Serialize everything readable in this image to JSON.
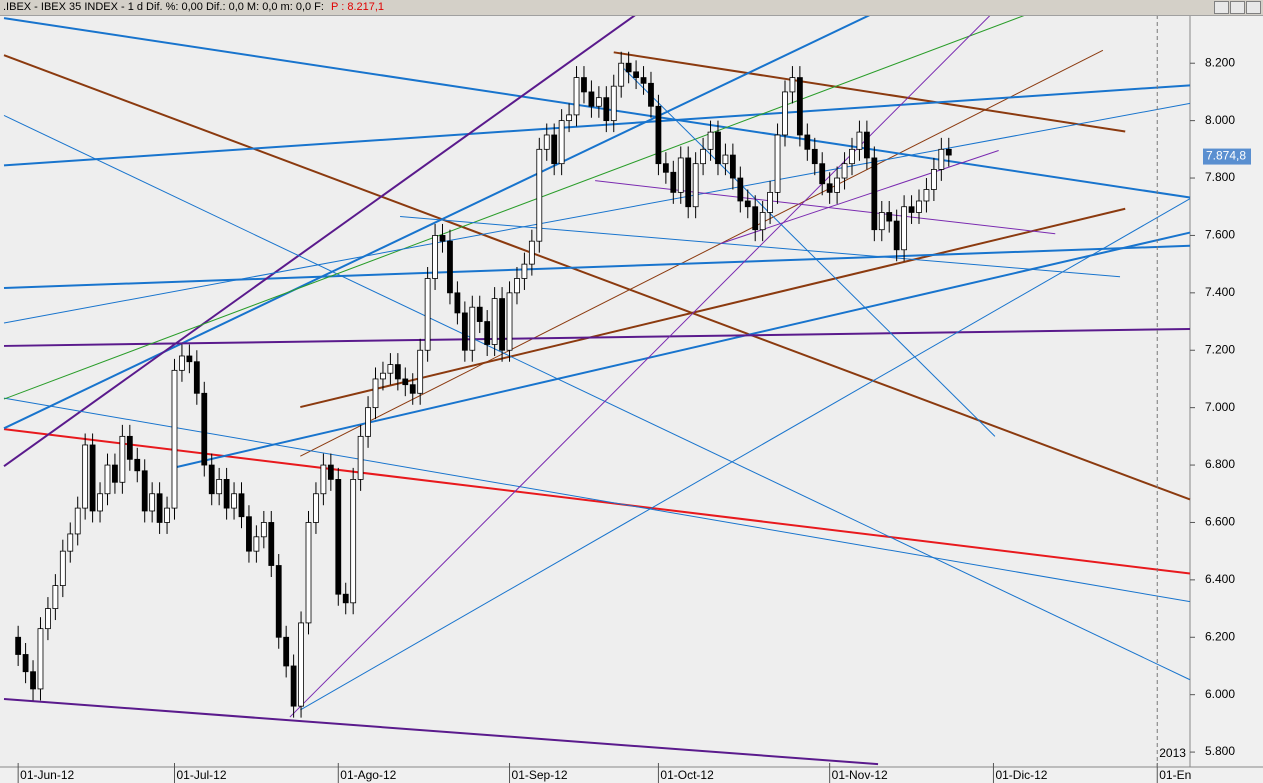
{
  "chart_data": {
    "type": "candlestick",
    "title": ".IBEX - IBEX 35 INDEX - 1 d Dif. %: 0,00  Dif.: 0,0  M: 0,0  m: 0,0  F:",
    "price_label": "P : 8.217,1",
    "year_marker": "2013",
    "last_value": {
      "value": 7874.8,
      "label": "7.874,8"
    },
    "up_color": "#ffffff",
    "down_color": "#000000",
    "open": [
      6200,
      6140,
      6080,
      6020,
      6230,
      6300,
      6380,
      6500,
      6560,
      6650,
      6870,
      6640,
      6700,
      6800,
      6740,
      6900,
      6820,
      6780,
      6640,
      6700,
      6600,
      6650,
      7130,
      7180,
      7160,
      7050,
      6800,
      6700,
      6750,
      6650,
      6700,
      6620,
      6500,
      6550,
      6600,
      6450,
      6200,
      6100,
      5960,
      6250,
      6600,
      6700,
      6800,
      6750,
      6350,
      6320,
      6750,
      6900,
      7000,
      7100,
      7120,
      7150,
      7100,
      7080,
      7050,
      7200,
      7450,
      7600,
      7580,
      7400,
      7330,
      7200,
      7350,
      7300,
      7220,
      7380,
      7200,
      7400,
      7450,
      7500,
      7580,
      7900,
      7950,
      7850,
      8000,
      8020,
      8150,
      8100,
      8050,
      8080,
      8000,
      8120,
      8200,
      8170,
      8150,
      8130,
      8050,
      7850,
      7820,
      7750,
      7870,
      7700,
      7850,
      7900,
      7960,
      7850,
      7880,
      7800,
      7720,
      7700,
      7620,
      7680,
      7750,
      7950,
      8100,
      8150,
      7950,
      7900,
      7850,
      7780,
      7750,
      7800,
      7850,
      7900,
      7960,
      7870,
      7620,
      7680,
      7650,
      7550,
      7700,
      7680,
      7720,
      7760,
      7830,
      7900
    ],
    "high": [
      6240,
      6180,
      6120,
      6270,
      6340,
      6420,
      6540,
      6600,
      6690,
      6910,
      6910,
      6740,
      6840,
      6840,
      6940,
      6940,
      6860,
      6820,
      6740,
      6740,
      6690,
      7170,
      7220,
      7220,
      7200,
      7090,
      6840,
      6790,
      6790,
      6740,
      6740,
      6660,
      6590,
      6640,
      6640,
      6490,
      6240,
      6140,
      6290,
      6640,
      6740,
      6840,
      6840,
      6790,
      6390,
      6790,
      6940,
      7040,
      7140,
      7160,
      7190,
      7190,
      7140,
      7120,
      7240,
      7490,
      7640,
      7640,
      7620,
      7440,
      7370,
      7390,
      7390,
      7340,
      7420,
      7420,
      7440,
      7490,
      7540,
      7620,
      7940,
      7990,
      7990,
      8040,
      8060,
      8190,
      8190,
      8140,
      8120,
      8120,
      8160,
      8240,
      8240,
      8210,
      8190,
      8170,
      8090,
      7890,
      7860,
      7910,
      7910,
      7890,
      7940,
      8000,
      8000,
      7920,
      7920,
      7840,
      7760,
      7740,
      7720,
      7790,
      7990,
      8140,
      8190,
      8190,
      7990,
      7940,
      7890,
      7820,
      7840,
      7890,
      7940,
      8000,
      8000,
      7910,
      7720,
      7720,
      7690,
      7740,
      7740,
      7760,
      7800,
      7870,
      7940,
      7940
    ],
    "low": [
      6100,
      6040,
      5980,
      5980,
      6190,
      6260,
      6340,
      6460,
      6520,
      6610,
      6600,
      6600,
      6660,
      6700,
      6700,
      6780,
      6740,
      6600,
      6600,
      6560,
      6560,
      6610,
      7090,
      7120,
      7010,
      6760,
      6660,
      6660,
      6610,
      6610,
      6580,
      6460,
      6460,
      6510,
      6410,
      6160,
      6060,
      5920,
      5920,
      6210,
      6560,
      6660,
      6710,
      6310,
      6280,
      6280,
      6710,
      6860,
      6960,
      7060,
      7080,
      7060,
      7040,
      7010,
      7010,
      7160,
      7410,
      7540,
      7360,
      7290,
      7160,
      7160,
      7260,
      7180,
      7180,
      7160,
      7160,
      7360,
      7410,
      7460,
      7540,
      7860,
      7810,
      7810,
      7960,
      7980,
      8060,
      8010,
      8010,
      7960,
      7960,
      8080,
      8130,
      8110,
      8090,
      8010,
      7810,
      7780,
      7710,
      7710,
      7660,
      7660,
      7810,
      7860,
      7810,
      7810,
      7760,
      7680,
      7660,
      7580,
      7580,
      7640,
      7710,
      7910,
      8060,
      7910,
      7860,
      7810,
      7740,
      7710,
      7710,
      7760,
      7810,
      7860,
      7830,
      7580,
      7580,
      7610,
      7510,
      7510,
      7640,
      7640,
      7680,
      7720,
      7790,
      7840
    ],
    "close": [
      6140,
      6080,
      6020,
      6230,
      6300,
      6380,
      6500,
      6560,
      6650,
      6870,
      6640,
      6700,
      6800,
      6740,
      6900,
      6820,
      6780,
      6640,
      6700,
      6600,
      6650,
      7130,
      7180,
      7160,
      7050,
      6800,
      6700,
      6750,
      6650,
      6700,
      6620,
      6500,
      6550,
      6600,
      6450,
      6200,
      6100,
      5960,
      6250,
      6600,
      6700,
      6800,
      6750,
      6350,
      6320,
      6750,
      6900,
      7000,
      7100,
      7120,
      7150,
      7100,
      7080,
      7050,
      7200,
      7450,
      7600,
      7580,
      7400,
      7330,
      7200,
      7350,
      7300,
      7220,
      7380,
      7200,
      7400,
      7450,
      7500,
      7580,
      7900,
      7950,
      7850,
      8000,
      8020,
      8150,
      8100,
      8050,
      8080,
      8000,
      8120,
      8200,
      8170,
      8150,
      8130,
      8050,
      7850,
      7820,
      7750,
      7870,
      7700,
      7850,
      7900,
      7960,
      7850,
      7880,
      7800,
      7720,
      7700,
      7620,
      7680,
      7750,
      7950,
      8100,
      8150,
      7950,
      7900,
      7850,
      7780,
      7750,
      7800,
      7850,
      7900,
      7960,
      7870,
      7620,
      7680,
      7650,
      7550,
      7700,
      7680,
      7720,
      7760,
      7830,
      7900,
      7880
    ],
    "xlim": [
      -1.9,
      157.4
    ],
    "xticks": [
      {
        "value": 0,
        "label": "01-Jun-12"
      },
      {
        "value": 21,
        "label": "01-Jul-12"
      },
      {
        "value": 43,
        "label": "01-Ago-12"
      },
      {
        "value": 66,
        "label": "01-Sep-12"
      },
      {
        "value": 86,
        "label": "01-Oct-12"
      },
      {
        "value": 109,
        "label": "01-Nov-12"
      },
      {
        "value": 131,
        "label": "01-Dic-12"
      },
      {
        "value": 153,
        "label": "01-En"
      }
    ],
    "ylim": [
      5748,
      8368
    ],
    "yticks": [
      {
        "value": 5800,
        "label": "5.800"
      },
      {
        "value": 6000,
        "label": "6.000"
      },
      {
        "value": 6200,
        "label": "6.200"
      },
      {
        "value": 6400,
        "label": "6.400"
      },
      {
        "value": 6600,
        "label": "6.600"
      },
      {
        "value": 6800,
        "label": "6.800"
      },
      {
        "value": 7000,
        "label": "7.000"
      },
      {
        "value": 7200,
        "label": "7.200"
      },
      {
        "value": 7400,
        "label": "7.400"
      },
      {
        "value": 7600,
        "label": "7.600"
      },
      {
        "value": 7800,
        "label": "7.800"
      },
      {
        "value": 8000,
        "label": "8.000"
      },
      {
        "value": 8200,
        "label": "8.200"
      }
    ],
    "trendlines": [
      {
        "color": "#e8191d",
        "width": 2,
        "x": [
          -1.9,
          157.4
        ],
        "y": [
          6925,
          6422
        ]
      },
      {
        "color": "#8b3a0f",
        "width": 2,
        "x": [
          -1.9,
          157.4
        ],
        "y": [
          8228,
          6680
        ]
      },
      {
        "color": "#8b3a0f",
        "width": 2,
        "x": [
          80.0,
          148.7
        ],
        "y": [
          8238,
          7962
        ]
      },
      {
        "color": "#8b3a0f",
        "width": 2,
        "x": [
          37.9,
          148.7
        ],
        "y": [
          7002,
          7693
        ]
      },
      {
        "color": "#8b3a0f",
        "width": 1,
        "x": [
          37.9,
          145.7
        ],
        "y": [
          6831,
          8245
        ]
      },
      {
        "color": "#1874cd",
        "width": 2,
        "x": [
          -1.9,
          157.4
        ],
        "y": [
          7844,
          8123
        ]
      },
      {
        "color": "#1874cd",
        "width": 2,
        "x": [
          -1.9,
          157.4
        ],
        "y": [
          8357,
          7732
        ]
      },
      {
        "color": "#1874cd",
        "width": 2,
        "x": [
          -1.9,
          114.4
        ],
        "y": [
          6928,
          8368
        ]
      },
      {
        "color": "#1874cd",
        "width": 2,
        "x": [
          21.1,
          157.4
        ],
        "y": [
          6792,
          7610
        ]
      },
      {
        "color": "#1874cd",
        "width": 2,
        "x": [
          -1.9,
          157.4
        ],
        "y": [
          7417,
          7564
        ]
      },
      {
        "color": "#5a1a8c",
        "width": 2,
        "x": [
          -1.9,
          82.9
        ],
        "y": [
          6796,
          8368
        ]
      },
      {
        "color": "#5a1a8c",
        "width": 2,
        "x": [
          -1.9,
          157.4
        ],
        "y": [
          7215,
          7274
        ]
      },
      {
        "color": "#5a1a8c",
        "width": 2,
        "x": [
          -1.9,
          115.5
        ],
        "y": [
          5985,
          5758
        ]
      },
      {
        "color": "#1874cd",
        "width": 1,
        "x": [
          -1.9,
          157.4
        ],
        "y": [
          8018,
          6052
        ]
      },
      {
        "color": "#1874cd",
        "width": 1,
        "x": [
          -1.9,
          157.4
        ],
        "y": [
          7033,
          6324
        ]
      },
      {
        "color": "#1874cd",
        "width": 1,
        "x": [
          37.9,
          157.4
        ],
        "y": [
          5947,
          7728
        ]
      },
      {
        "color": "#2a9d2a",
        "width": 1,
        "x": [
          -1.9,
          135.3
        ],
        "y": [
          7030,
          8368
        ]
      },
      {
        "color": "#7a2ab0",
        "width": 1,
        "x": [
          36.5,
          130.6
        ],
        "y": [
          5922,
          8368
        ]
      },
      {
        "color": "#1874cd",
        "width": 1,
        "x": [
          -1.9,
          157.4
        ],
        "y": [
          7295,
          8060
        ]
      },
      {
        "color": "#1874cd",
        "width": 1,
        "x": [
          51.3,
          148.0
        ],
        "y": [
          7666,
          7456
        ]
      },
      {
        "color": "#1874cd",
        "width": 1,
        "x": [
          80.9,
          131.2
        ],
        "y": [
          8193,
          6900
        ]
      },
      {
        "color": "#7a2ab0",
        "width": 1,
        "x": [
          77.5,
          139.3
        ],
        "y": [
          7791,
          7606
        ]
      },
      {
        "color": "#7a2ab0",
        "width": 1,
        "x": [
          94.3,
          131.7
        ],
        "y": [
          7571,
          7896
        ]
      }
    ]
  }
}
